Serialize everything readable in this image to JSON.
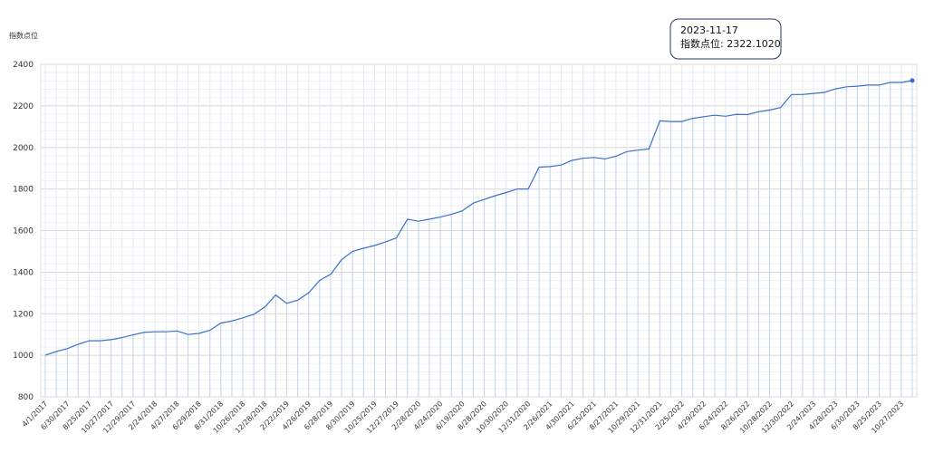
{
  "chart_data": {
    "type": "line",
    "y_title": "指数点位",
    "categories": [
      "4/1/2017",
      null,
      "6/30/2017",
      null,
      "8/25/2017",
      null,
      "10/27/2017",
      null,
      "12/29/2017",
      null,
      "2/24/2018",
      null,
      "4/27/2018",
      null,
      "6/29/2018",
      null,
      "8/31/2018",
      null,
      "10/26/2018",
      null,
      "12/28/2018",
      null,
      "2/22/2019",
      null,
      "4/26/2019",
      null,
      "6/28/2019",
      null,
      "8/30/2019",
      null,
      "10/25/2019",
      null,
      "12/27/2019",
      null,
      "2/28/2020",
      null,
      "4/24/2020",
      null,
      "6/19/2020",
      null,
      "8/28/2020",
      null,
      "10/30/2020",
      null,
      "12/31/2020",
      null,
      "2/26/2021",
      null,
      "4/30/2021",
      null,
      "6/25/2021",
      null,
      "8/27/2021",
      null,
      "10/29/2021",
      null,
      "12/31/2021",
      null,
      "2/25/2022",
      null,
      "4/29/2022",
      null,
      "6/24/2022",
      null,
      "8/26/2022",
      null,
      "10/28/2022",
      null,
      "12/30/2022",
      null,
      "2/24/2023",
      null,
      "4/28/2023",
      null,
      "6/30/2023",
      null,
      "8/25/2023",
      null,
      "10/27/2023",
      null
    ],
    "values": [
      1000,
      1018,
      1032,
      1053,
      1070,
      1070,
      1075,
      1085,
      1098,
      1110,
      1113,
      1113,
      1117,
      1100,
      1105,
      1120,
      1155,
      1165,
      1180,
      1197,
      1232,
      1290,
      1250,
      1265,
      1300,
      1360,
      1390,
      1460,
      1500,
      1515,
      1528,
      1545,
      1565,
      1655,
      1645,
      1655,
      1665,
      1678,
      1695,
      1732,
      1750,
      1768,
      1783,
      1800,
      1800,
      1905,
      1908,
      1915,
      1938,
      1948,
      1952,
      1945,
      1958,
      1980,
      1987,
      1993,
      2128,
      2125,
      2125,
      2140,
      2148,
      2155,
      2150,
      2160,
      2158,
      2172,
      2180,
      2192,
      2255,
      2255,
      2260,
      2265,
      2282,
      2292,
      2295,
      2300,
      2300,
      2313,
      2313,
      2322.102
    ],
    "color": "#3a6fd0",
    "ylim": [
      800,
      2400
    ],
    "yticks": [
      800,
      1000,
      1200,
      1400,
      1600,
      1800,
      2000,
      2200,
      2400
    ],
    "grid": true,
    "tooltip": {
      "title": "2023-11-17",
      "text": "指数点位: 2322.1020"
    }
  }
}
